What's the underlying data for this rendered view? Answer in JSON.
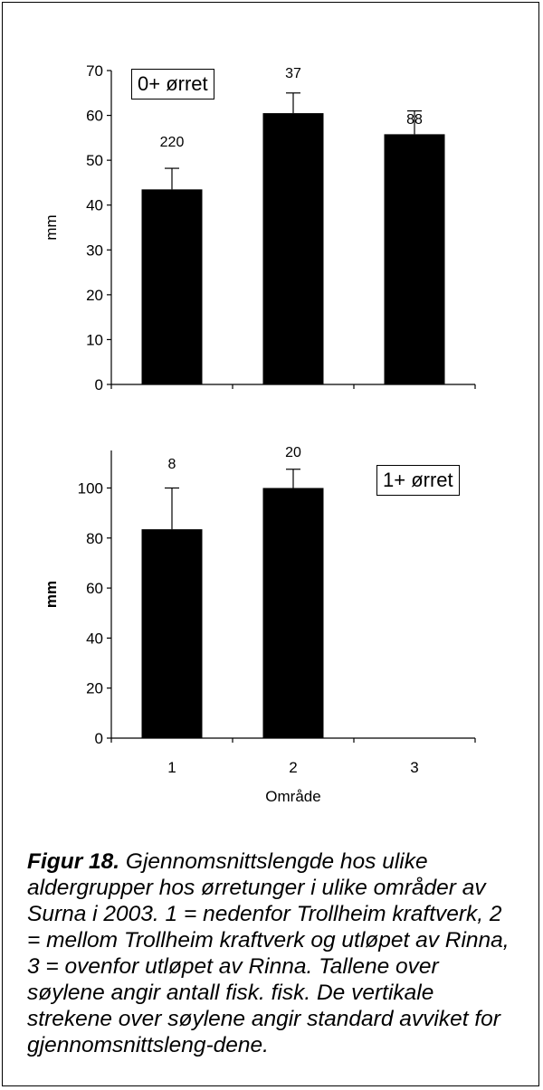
{
  "chart_data": [
    {
      "type": "bar",
      "title": "",
      "xlabel": "",
      "ylabel": "mm",
      "legend_box": "0+ ørret",
      "categories": [
        "1",
        "2",
        "3"
      ],
      "values": [
        43.5,
        60.5,
        55.8
      ],
      "error_bars": [
        4.7,
        4.5,
        5.2
      ],
      "data_labels": [
        "220",
        "37",
        "88"
      ],
      "ylim": [
        0,
        70
      ],
      "yticks": [
        "0",
        "10",
        "20",
        "30",
        "40",
        "50",
        "60",
        "70"
      ],
      "grid": false
    },
    {
      "type": "bar",
      "title": "",
      "xlabel": "Område",
      "ylabel": "mm",
      "legend_box": "1+ ørret",
      "categories": [
        "1",
        "2",
        "3"
      ],
      "x_tick_labels": [
        "1",
        "2",
        "3"
      ],
      "values": [
        83.5,
        100,
        null
      ],
      "error_bars": [
        16.5,
        7.5,
        null
      ],
      "data_labels": [
        "8",
        "20",
        ""
      ],
      "ylim": [
        0,
        115
      ],
      "yticks": [
        "0",
        "20",
        "40",
        "60",
        "80",
        "100"
      ],
      "grid": false
    }
  ],
  "caption": {
    "figure_label": "Figur 18.",
    "text": " Gjennomsnittslengde hos ulike aldergrupper hos ørretunger i ulike områder av Surna i 2003. 1 = nedenfor Trollheim kraftverk, 2 = mellom Trollheim kraftverk og utløpet av Rinna, 3 = ovenfor utløpet av Rinna. Tallene over søylene angir antall fisk. fisk. De vertikale strekene over søylene angir standard avviket for gjennomsnittsleng-dene."
  }
}
